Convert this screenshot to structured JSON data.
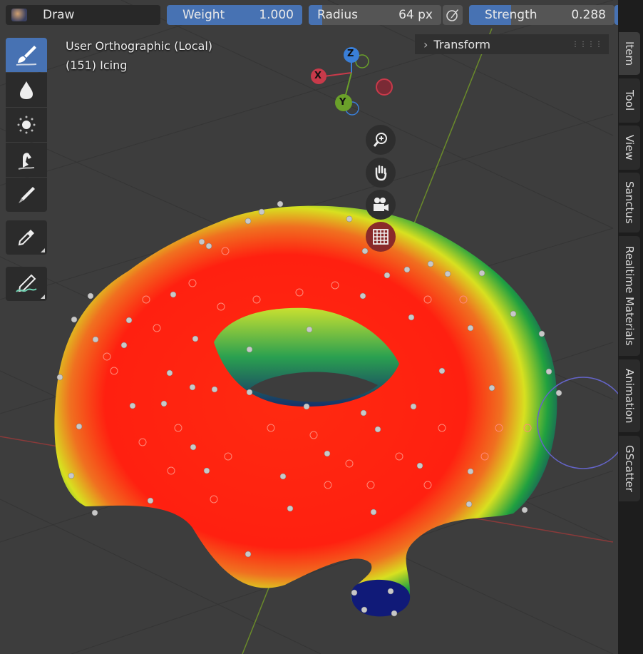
{
  "header": {
    "mode_label": "Draw",
    "weight": {
      "label": "Weight",
      "value": "1.000",
      "fill_fraction": 1.0
    },
    "radius": {
      "label": "Radius",
      "value": "64 px",
      "fill_fraction": 0.1
    },
    "strength": {
      "label": "Strength",
      "value": "0.288",
      "fill_fraction": 0.288
    }
  },
  "viewport_info": {
    "view_name": "User Orthographic (Local)",
    "object_label": "(151) Icing"
  },
  "gizmo": {
    "axis_x": "X",
    "axis_y": "Y",
    "axis_z": "Z"
  },
  "toolbar": {
    "tools": [
      "draw-tool",
      "blur-tool",
      "average-tool",
      "smear-tool",
      "gradient-tool",
      "sample-weight-tool",
      "annotate-tool"
    ],
    "active_tool": "draw-tool"
  },
  "sidebar_panel": {
    "title": "Transform"
  },
  "tabs": [
    "Item",
    "Tool",
    "View",
    "Sanctus",
    "Realtime Materials",
    "Animation",
    "GScatter"
  ],
  "active_tab": "Item",
  "colors": {
    "accent": "#4772b3",
    "background": "#3d3d3d",
    "header_field": "#555555"
  }
}
